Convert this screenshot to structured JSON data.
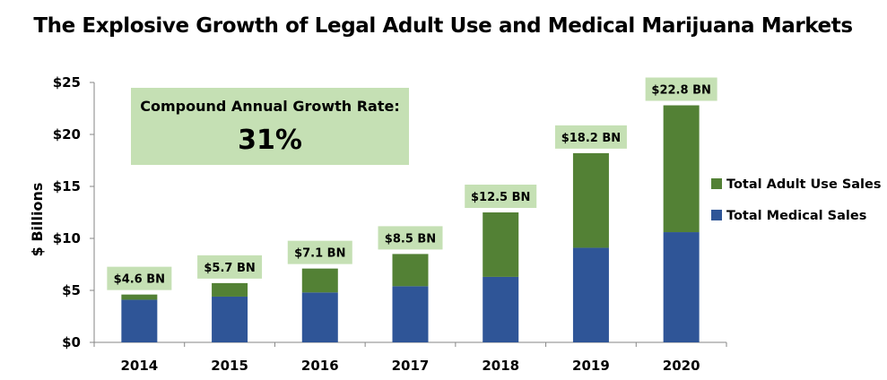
{
  "chart_data": {
    "type": "bar",
    "stacked": true,
    "title": "The Explosive Growth of Legal Adult Use and Medical Marijuana Markets",
    "xlabel": "",
    "ylabel": "$ Billions",
    "ylim": [
      0,
      25
    ],
    "yticks": [
      0,
      5,
      10,
      15,
      20,
      25
    ],
    "ytick_labels": [
      "$0",
      "$5",
      "$10",
      "$15",
      "$20",
      "$25"
    ],
    "grid": false,
    "categories": [
      "2014",
      "2015",
      "2016",
      "2017",
      "2018",
      "2019",
      "2020"
    ],
    "series": [
      {
        "name": "Total Medical Sales",
        "color": "#2F5597",
        "values": [
          4.1,
          4.4,
          4.8,
          5.4,
          6.3,
          9.1,
          10.6
        ]
      },
      {
        "name": "Total Adult Use Sales",
        "color": "#538135",
        "values": [
          0.5,
          1.3,
          2.3,
          3.1,
          6.2,
          9.1,
          12.2
        ]
      }
    ],
    "totals": [
      4.6,
      5.7,
      7.1,
      8.5,
      12.5,
      18.2,
      22.8
    ],
    "data_labels": [
      "$4.6 BN",
      "$5.7 BN",
      "$7.1 BN",
      "$8.5 BN",
      "$12.5 BN",
      "$18.2 BN",
      "$22.8 BN"
    ],
    "data_label_bg": "#C5E0B4",
    "legend": {
      "position": "right",
      "entries": [
        {
          "label": "Total Adult Use Sales",
          "color": "#538135"
        },
        {
          "label": "Total Medical Sales",
          "color": "#2F5597"
        }
      ]
    },
    "annotation": {
      "label": "Compound Annual Growth Rate:",
      "value": "31%",
      "background": "#C5E0B4"
    }
  }
}
